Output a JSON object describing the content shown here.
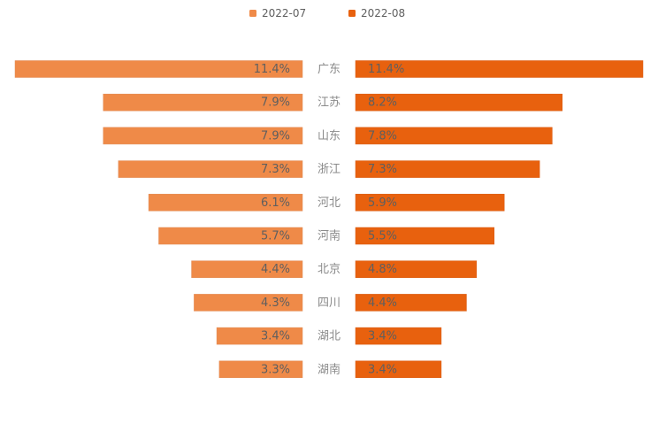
{
  "chart_data": {
    "type": "bar",
    "layout": "butterfly",
    "categories": [
      "广东",
      "江苏",
      "山东",
      "浙江",
      "河北",
      "河南",
      "北京",
      "四川",
      "湖北",
      "湖南"
    ],
    "series": [
      {
        "name": "2022-07",
        "values": [
          11.4,
          7.9,
          7.9,
          7.3,
          6.1,
          5.7,
          4.4,
          4.3,
          3.4,
          3.3
        ],
        "labels": [
          "11.4%",
          "7.9%",
          "7.9%",
          "7.3%",
          "6.1%",
          "5.7%",
          "4.4%",
          "4.3%",
          "3.4%",
          "3.3%"
        ],
        "color": "#ef8a48"
      },
      {
        "name": "2022-08",
        "values": [
          11.4,
          8.2,
          7.8,
          7.3,
          5.9,
          5.5,
          4.8,
          4.4,
          3.4,
          3.4
        ],
        "labels": [
          "11.4%",
          "8.2%",
          "7.8%",
          "7.3%",
          "5.9%",
          "5.5%",
          "4.8%",
          "4.4%",
          "3.4%",
          "3.4%"
        ],
        "color": "#e8610e"
      }
    ],
    "value_unit": "%",
    "legend_position": "top-center",
    "grid": false
  }
}
